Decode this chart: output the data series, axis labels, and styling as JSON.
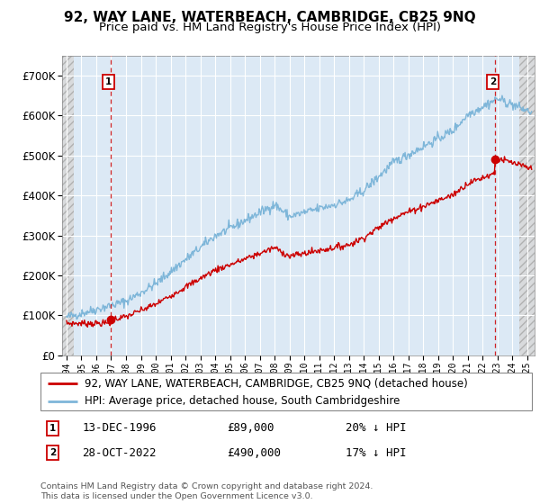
{
  "title": "92, WAY LANE, WATERBEACH, CAMBRIDGE, CB25 9NQ",
  "subtitle": "Price paid vs. HM Land Registry's House Price Index (HPI)",
  "ylim": [
    0,
    750000
  ],
  "yticks": [
    0,
    100000,
    200000,
    300000,
    400000,
    500000,
    600000,
    700000
  ],
  "ytick_labels": [
    "£0",
    "£100K",
    "£200K",
    "£300K",
    "£400K",
    "£500K",
    "£600K",
    "£700K"
  ],
  "xmin": 1993.7,
  "xmax": 2025.5,
  "hpi_color": "#7eb6d9",
  "price_color": "#cc0000",
  "dot_color": "#cc0000",
  "plot_bg": "#dce9f5",
  "grid_color": "#ffffff",
  "legend_label_red": "92, WAY LANE, WATERBEACH, CAMBRIDGE, CB25 9NQ (detached house)",
  "legend_label_blue": "HPI: Average price, detached house, South Cambridgeshire",
  "sale1_year": 1996.96,
  "sale1_price": 89000,
  "sale1_label": "1",
  "sale1_date": "13-DEC-1996",
  "sale1_amount": "£89,000",
  "sale1_hpi": "20% ↓ HPI",
  "sale2_year": 2022.83,
  "sale2_price": 490000,
  "sale2_label": "2",
  "sale2_date": "28-OCT-2022",
  "sale2_amount": "£490,000",
  "sale2_hpi": "17% ↓ HPI",
  "footnote": "Contains HM Land Registry data © Crown copyright and database right 2024.\nThis data is licensed under the Open Government Licence v3.0.",
  "title_fontsize": 11,
  "subtitle_fontsize": 9.5,
  "tick_fontsize": 8.5,
  "legend_fontsize": 8.5,
  "annotation_fontsize": 9,
  "hatch_left_end": 1994.5,
  "hatch_right_start": 2024.5
}
